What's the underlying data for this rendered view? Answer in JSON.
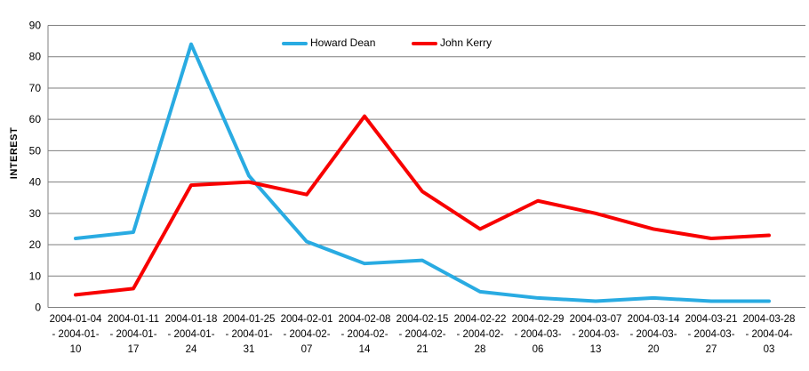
{
  "chart_data": {
    "type": "line",
    "title": "",
    "xlabel": "",
    "ylabel": "INTEREST",
    "ylim": [
      0,
      90
    ],
    "yticks": [
      0,
      10,
      20,
      30,
      40,
      50,
      60,
      70,
      80,
      90
    ],
    "grid": "horizontal",
    "legend_position": "top-center-inside",
    "categories": [
      "2004-01-04 - 2004-01-10",
      "2004-01-11 - 2004-01-17",
      "2004-01-18 - 2004-01-24",
      "2004-01-25 - 2004-01-31",
      "2004-02-01 - 2004-02-07",
      "2004-02-08 - 2004-02-14",
      "2004-02-15 - 2004-02-21",
      "2004-02-22 - 2004-02-28",
      "2004-02-29 - 2004-03-06",
      "2004-03-07 - 2004-03-13",
      "2004-03-14 - 2004-03-20",
      "2004-03-21 - 2004-03-27",
      "2004-03-28 - 2004-04-03"
    ],
    "series": [
      {
        "name": "Howard Dean",
        "color": "#29ABE2",
        "values": [
          22,
          24,
          84,
          42,
          21,
          14,
          15,
          5,
          3,
          2,
          3,
          2,
          2
        ]
      },
      {
        "name": "John Kerry",
        "color": "#F80000",
        "values": [
          4,
          6,
          39,
          40,
          36,
          61,
          37,
          25,
          34,
          30,
          25,
          22,
          23
        ]
      }
    ]
  },
  "colors": {
    "grid": "#7F7F7F",
    "axis": "#7F7F7F",
    "text": "#000000",
    "background": "#FFFFFF"
  }
}
